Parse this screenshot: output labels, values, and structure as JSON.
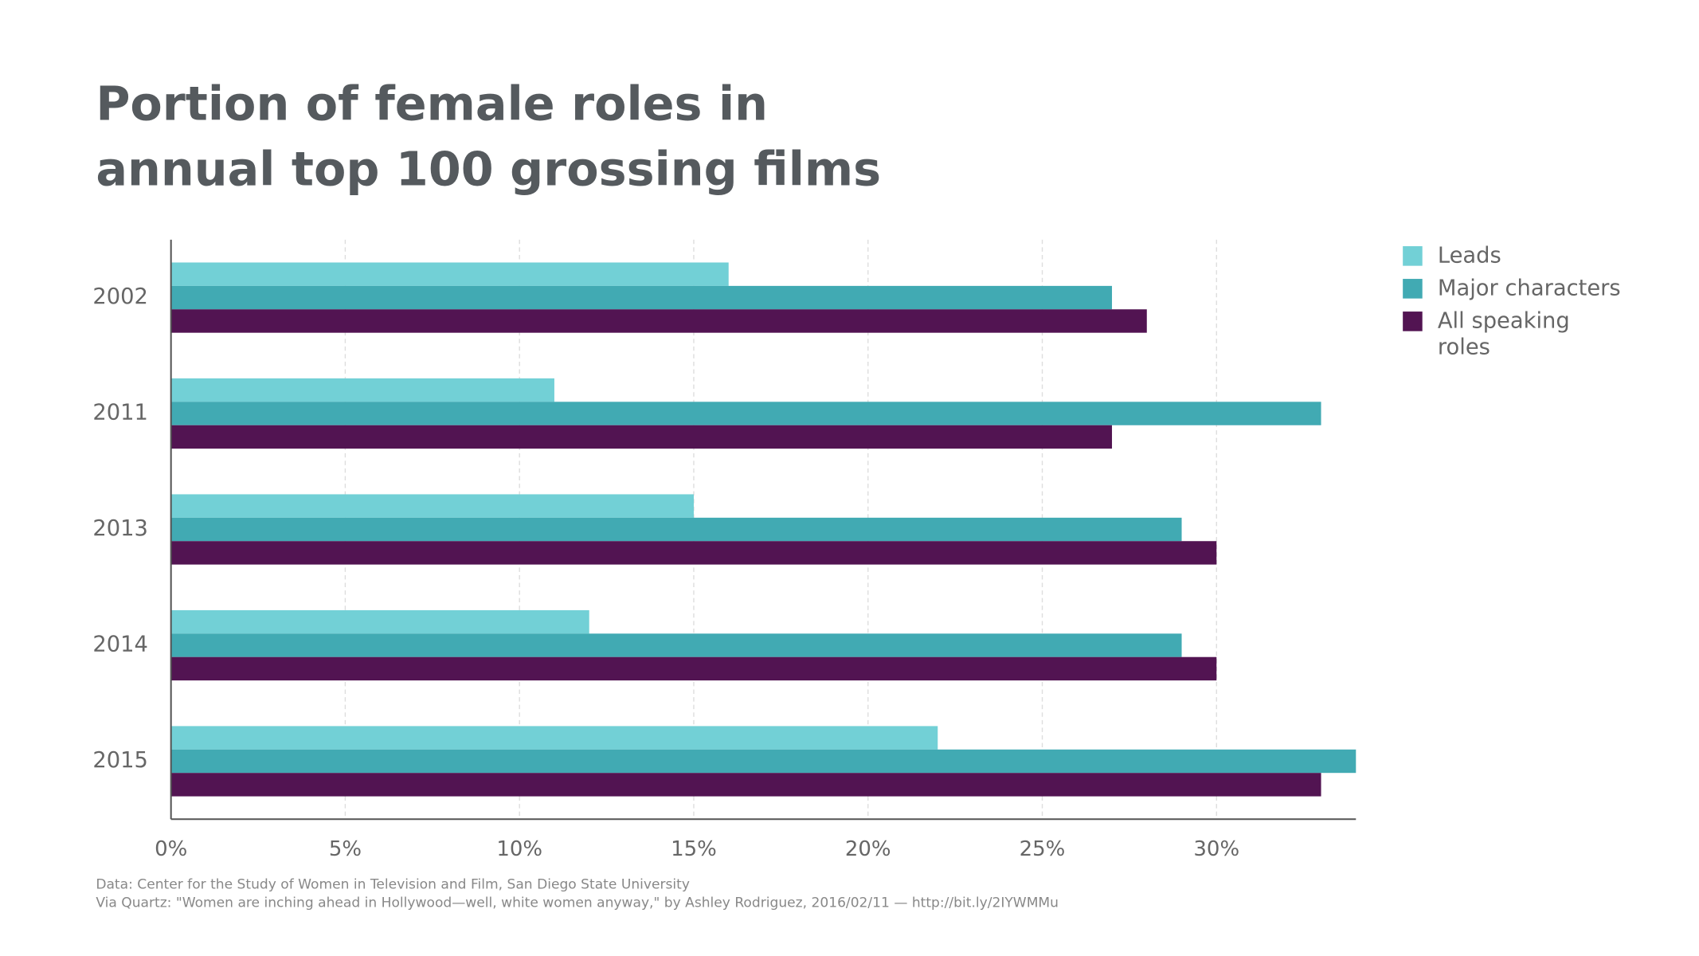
{
  "chart_data": {
    "type": "hbar",
    "title": "Portion of female roles in annual top 100 grossing films",
    "categories": [
      "2002",
      "2011",
      "2013",
      "2014",
      "2015"
    ],
    "series": [
      {
        "name": "Leads",
        "color": "#72d0d6",
        "values": [
          16,
          11,
          15,
          12,
          22
        ]
      },
      {
        "name": "Major characters",
        "color": "#41aab3",
        "values": [
          27,
          33,
          29,
          29,
          34
        ]
      },
      {
        "name": "All speaking roles",
        "color": "#521452",
        "values": [
          28,
          27,
          30,
          30,
          33
        ]
      }
    ],
    "xlim": [
      0,
      34
    ],
    "xticks": [
      {
        "value": 0,
        "label": "0%"
      },
      {
        "value": 5,
        "label": "5%"
      },
      {
        "value": 10,
        "label": "10%"
      },
      {
        "value": 15,
        "label": "15%"
      },
      {
        "value": 20,
        "label": "20%"
      },
      {
        "value": 25,
        "label": "25%"
      },
      {
        "value": 30,
        "label": "30%"
      }
    ],
    "grid": true,
    "legend": "right",
    "source": "Data: Center for the Study of Women in Television and Film, San Diego State University",
    "credit": "Via Quartz: \"Women are inching ahead in Hollywood—well, white women anyway,\" by Ashley Rodriguez, 2016/02/11 — http://bit.ly/2IYWMMu"
  }
}
